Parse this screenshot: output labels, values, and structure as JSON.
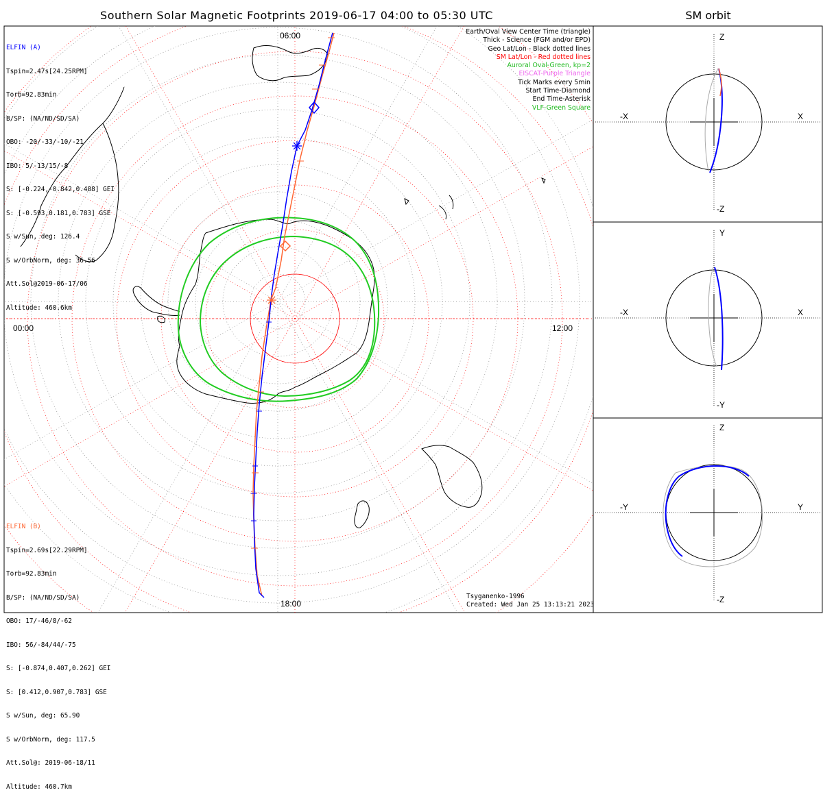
{
  "main": {
    "title": "Southern Solar Magnetic Footprints 2019-06-17 04:00 to 05:30 UTC",
    "mlt_labels": {
      "top": "06:00",
      "right": "12:00",
      "bottom": "18:00",
      "left": "00:00"
    }
  },
  "elfin_a": {
    "name": "ELFIN (A)",
    "color": "#0000ff",
    "lines": [
      "Tspin=2.47s[24.25RPM]",
      "Torb=92.83min",
      "B/SP: (NA/ND/SD/SA)",
      "OBO: -20/-33/-10/-21",
      "IBO: 5/-13/15/-8",
      "S: [-0.224,-0.842,0.488] GEI",
      "S: [-0.593,0.181,0.783] GSE",
      "S w/Sun, deg: 126.4",
      "S w/OrbNorm, deg: 36.56",
      "Att.Sol@2019-06-17/06",
      "Altitude: 460.6km"
    ]
  },
  "elfin_b": {
    "name": "ELFIN (B)",
    "color": "#ff6633",
    "lines": [
      "Tspin=2.69s[22.29RPM]",
      "Torb=92.83min",
      "B/SP: (NA/ND/SD/SA)",
      "OBO: 17/-46/8/-62",
      "IBO: 56/-84/44/-75",
      "S: [-0.874,0.407,0.262] GEI",
      "S: [0.412,0.907,0.783] GSE",
      "S w/Sun, deg: 65.90",
      "S w/OrbNorm, deg: 117.5",
      "Att.Sol@: 2019-06-18/11",
      "Altitude: 460.7km"
    ]
  },
  "legend": [
    {
      "text": "Earth/Oval View Center Time (triangle)",
      "color": "#000000"
    },
    {
      "text": "Thick - Science (FGM and/or EPD)",
      "color": "#000000"
    },
    {
      "text": "Geo Lat/Lon - Black dotted lines",
      "color": "#000000"
    },
    {
      "text": "SM Lat/Lon - Red dotted lines",
      "color": "#ff0000"
    },
    {
      "text": "Auroral Oval-Green, kp=2",
      "color": "#22bb22"
    },
    {
      "text": "EISCAT-Purple Triangle",
      "color": "#ee66ee"
    },
    {
      "text": "Tick Marks every 5min",
      "color": "#000000"
    },
    {
      "text": "Start Time-Diamond",
      "color": "#000000"
    },
    {
      "text": "End Time-Asterisk",
      "color": "#000000"
    },
    {
      "text": "VLF-Green Square",
      "color": "#22bb22"
    }
  ],
  "credit": {
    "model": "Tsyganenko-1996",
    "created": "Created: Wed Jan 25 13:13:21 2023"
  },
  "sm_orbit": {
    "title": "SM orbit",
    "panels": [
      {
        "top": "Z",
        "bottom": "-Z",
        "left": "-X",
        "right": "X"
      },
      {
        "top": "Y",
        "bottom": "-Y",
        "left": "-X",
        "right": "X"
      },
      {
        "top": "Z",
        "bottom": "-Z",
        "left": "-Y",
        "right": "Y"
      }
    ]
  },
  "chart_data": {
    "type": "scatter",
    "projection": "southern polar, solar magnetic",
    "time_range": [
      "2019-06-17 04:00",
      "2019-06-17 05:30"
    ],
    "tick_interval_min": 5,
    "auroral_oval_kp": 2,
    "colors": {
      "elfin_a": "#0000ff",
      "elfin_b": "#ff6633",
      "oval": "#22cc22",
      "sm_grid": "#ff0000"
    }
  }
}
